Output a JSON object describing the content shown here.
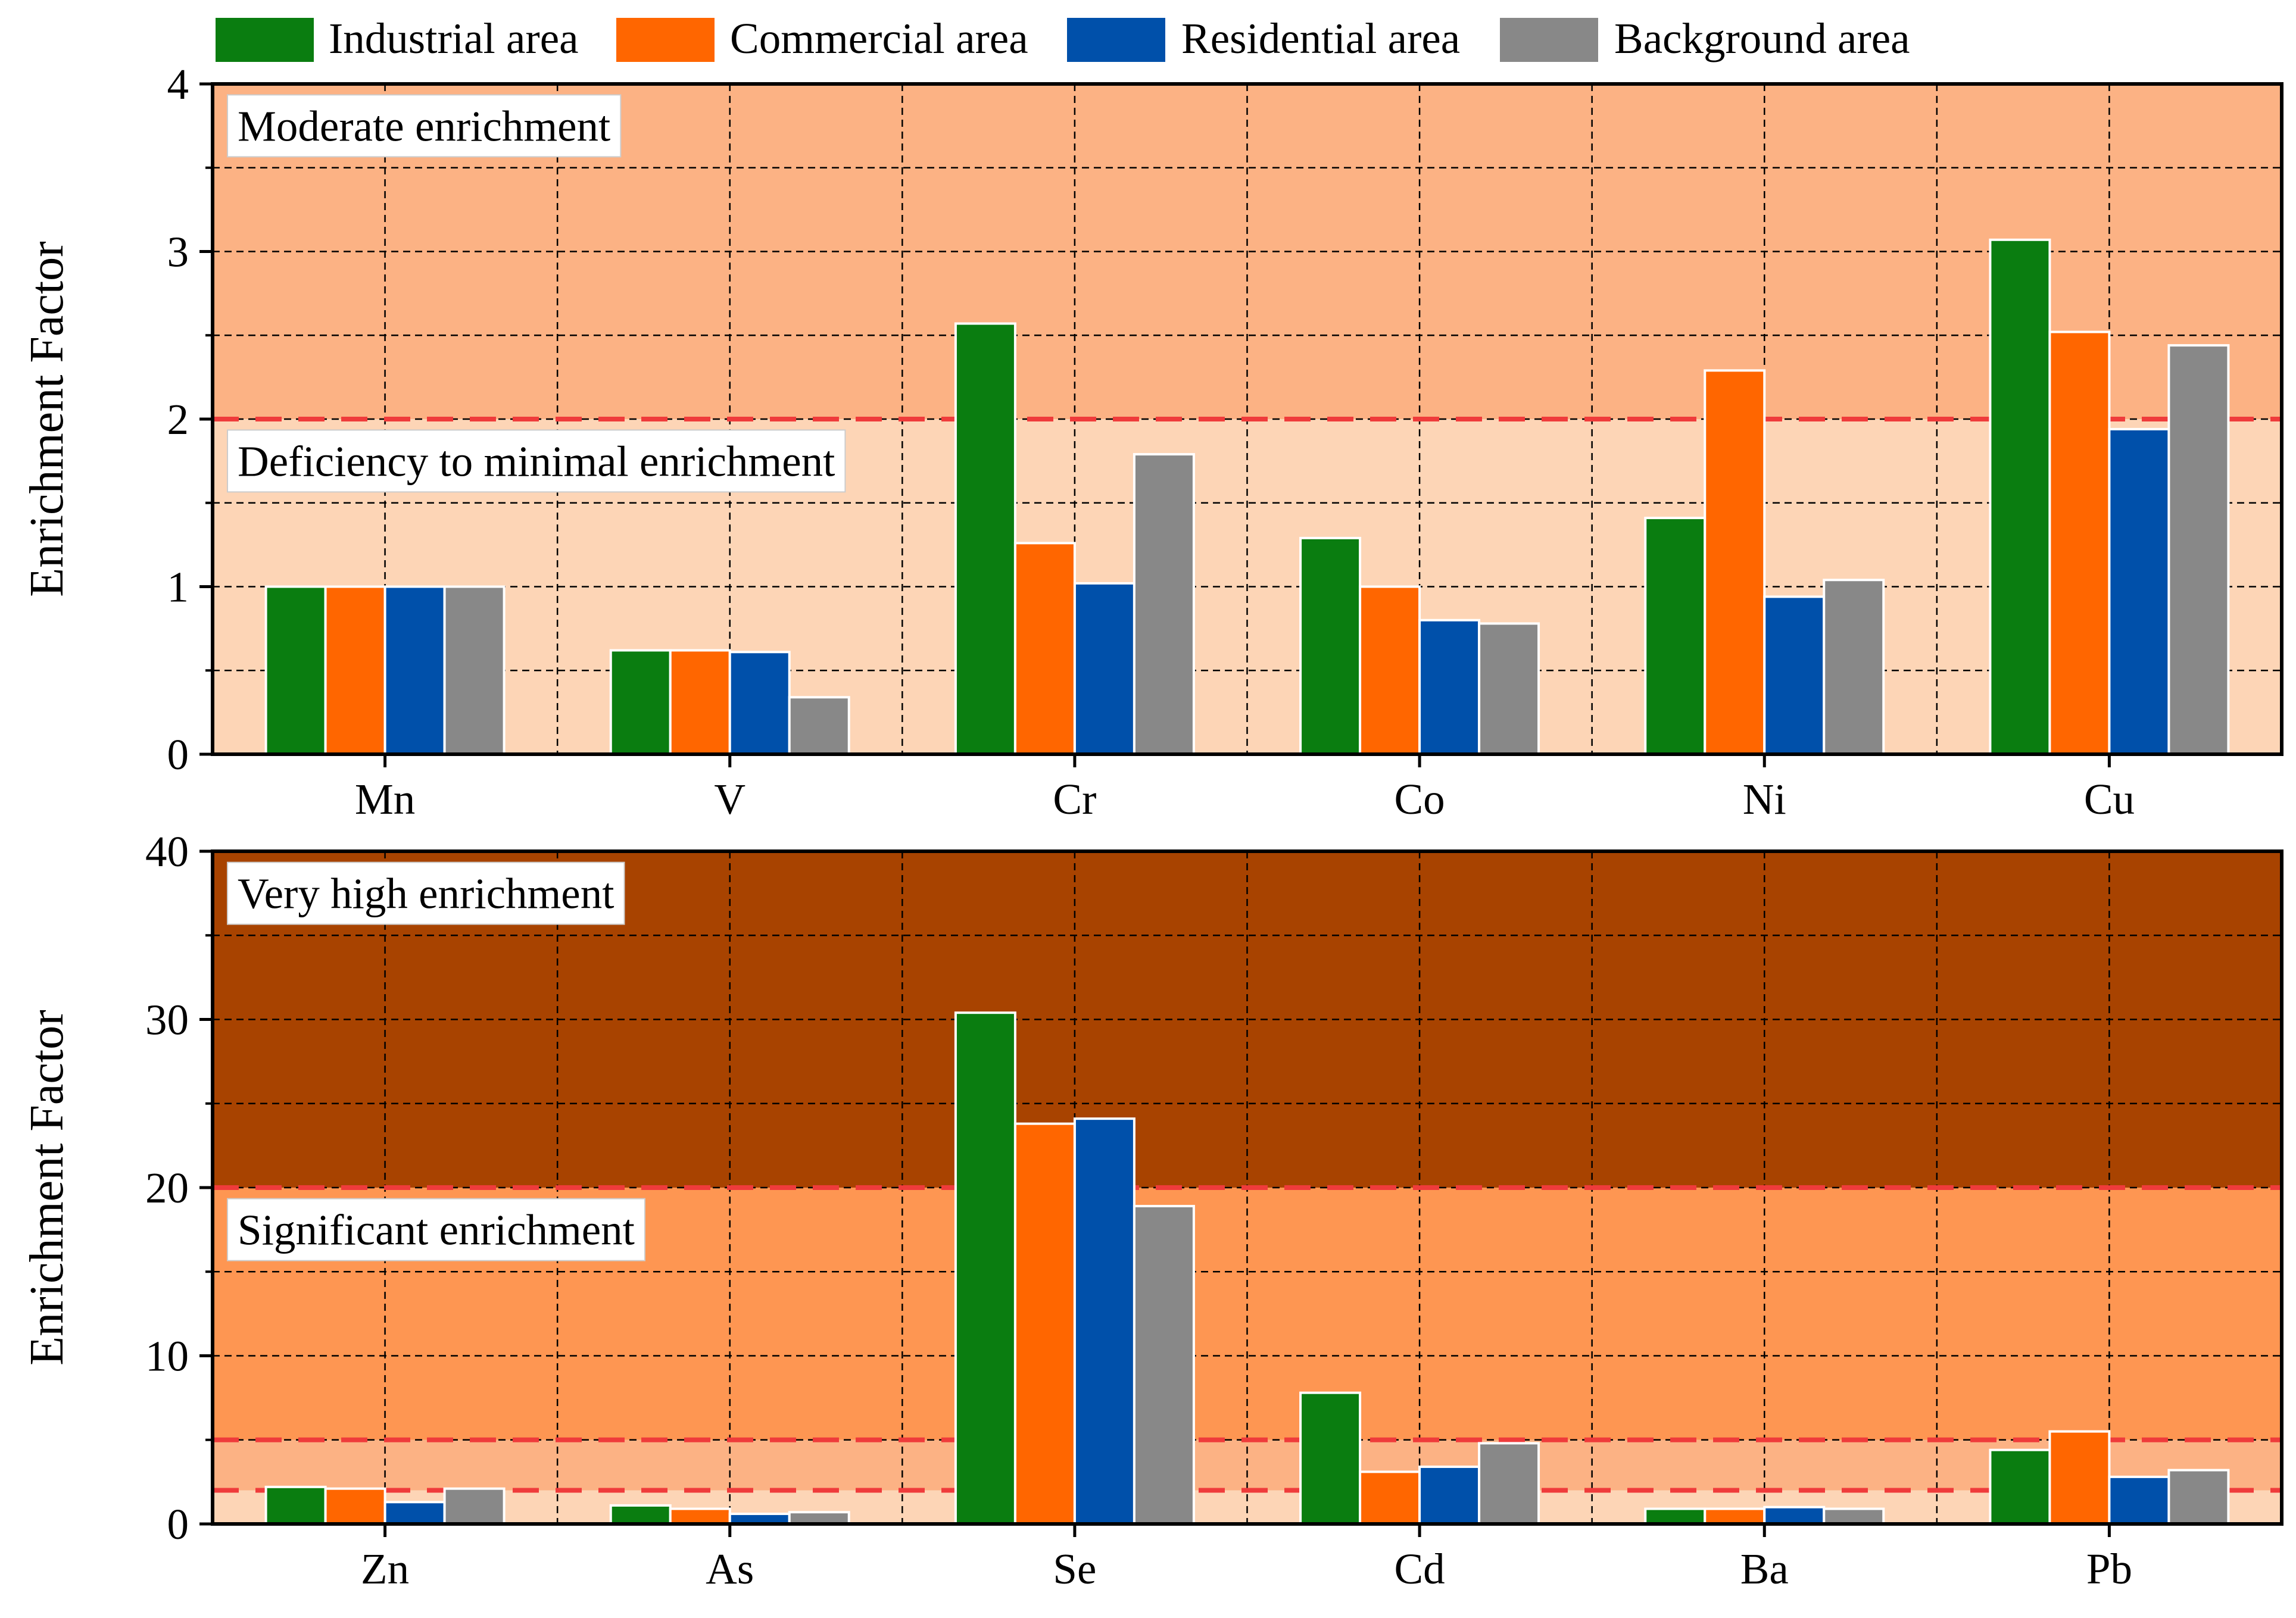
{
  "legend": {
    "items": [
      {
        "label": "Industrial area",
        "color": "#0a7d10"
      },
      {
        "label": "Commercial area",
        "color": "#ff6600"
      },
      {
        "label": "Residential area",
        "color": "#0050aa"
      },
      {
        "label": "Background area",
        "color": "#888888"
      }
    ]
  },
  "chart_data": [
    {
      "type": "bar",
      "ylabel": "Enrichment Factor",
      "ylim": [
        0,
        4
      ],
      "yticks": [
        0,
        1,
        2,
        3,
        4
      ],
      "grid": true,
      "categories": [
        "Mn",
        "V",
        "Cr",
        "Co",
        "Ni",
        "Cu"
      ],
      "series": [
        {
          "name": "Industrial area",
          "values": [
            1.0,
            0.62,
            2.57,
            1.29,
            1.41,
            3.07
          ]
        },
        {
          "name": "Commercial area",
          "values": [
            1.0,
            0.62,
            1.26,
            1.0,
            2.29,
            2.52
          ]
        },
        {
          "name": "Residential area",
          "values": [
            1.0,
            0.61,
            1.02,
            0.8,
            0.94,
            1.94
          ]
        },
        {
          "name": "Background area",
          "values": [
            1.0,
            0.34,
            1.79,
            0.78,
            1.04,
            2.44
          ]
        }
      ],
      "bands": [
        {
          "from": 0,
          "to": 2,
          "color": "#fdd5b6",
          "label": "Deficiency to minimal enrichment",
          "label_at": 1.75
        },
        {
          "from": 2,
          "to": 4,
          "color": "#fcb284",
          "label": "Moderate enrichment",
          "label_at": 3.75
        }
      ],
      "threshold_lines": [
        2
      ]
    },
    {
      "type": "bar",
      "ylabel": "Enrichment Factor",
      "ylim": [
        0,
        40
      ],
      "yticks": [
        0,
        10,
        20,
        30,
        40
      ],
      "grid": true,
      "categories": [
        "Zn",
        "As",
        "Se",
        "Cd",
        "Ba",
        "Pb"
      ],
      "series": [
        {
          "name": "Industrial area",
          "values": [
            2.2,
            1.1,
            30.4,
            7.8,
            0.9,
            4.4
          ]
        },
        {
          "name": "Commercial area",
          "values": [
            2.1,
            0.9,
            23.8,
            3.1,
            0.9,
            5.5
          ]
        },
        {
          "name": "Residential area",
          "values": [
            1.3,
            0.6,
            24.1,
            3.4,
            1.0,
            2.8
          ]
        },
        {
          "name": "Background area",
          "values": [
            2.1,
            0.7,
            18.9,
            4.8,
            0.9,
            3.2
          ]
        }
      ],
      "bands": [
        {
          "from": 0,
          "to": 2,
          "color": "#fdd5b6"
        },
        {
          "from": 2,
          "to": 5,
          "color": "#fcb284"
        },
        {
          "from": 5,
          "to": 20,
          "color": "#fe9652",
          "label": "Significant enrichment",
          "label_at": 17.5
        },
        {
          "from": 20,
          "to": 40,
          "color": "#a84300",
          "label": "Very high enrichment",
          "label_at": 37.5
        }
      ],
      "threshold_lines": [
        2,
        5,
        20
      ]
    }
  ]
}
